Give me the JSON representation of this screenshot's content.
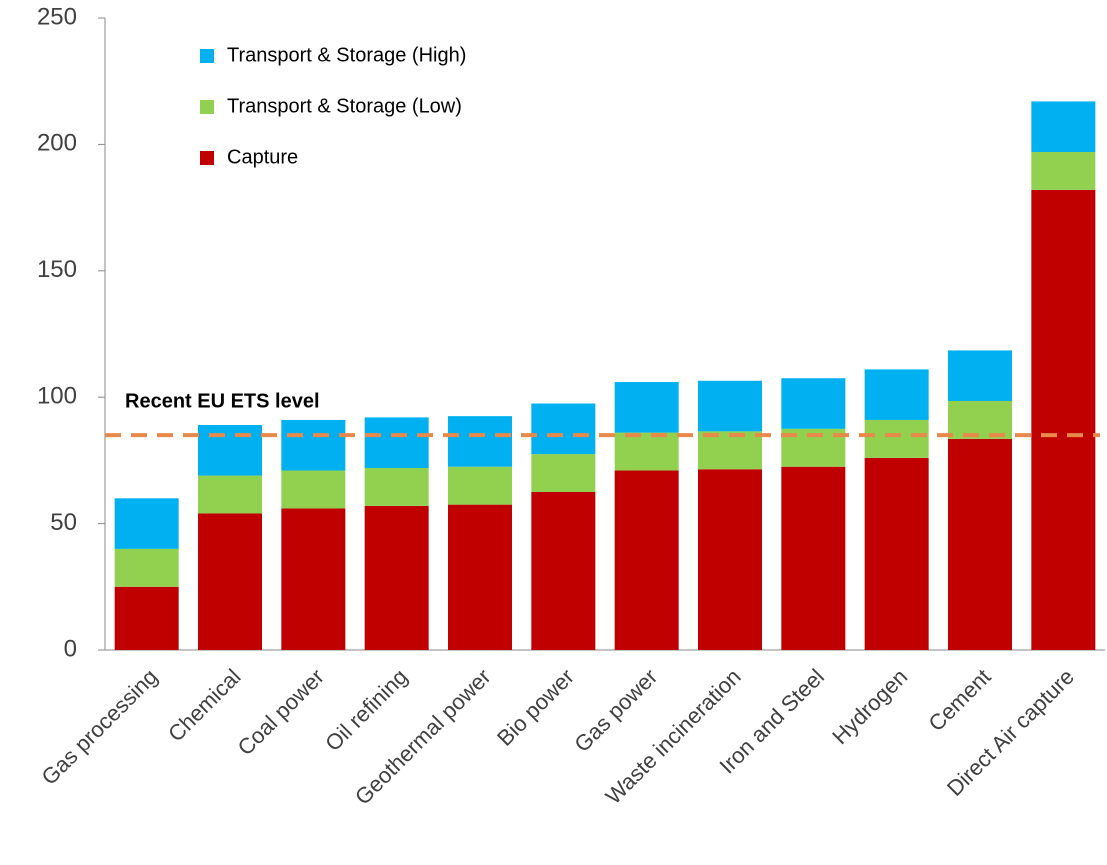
{
  "chart_data": {
    "type": "stacked_bar",
    "categories": [
      "Gas processing",
      "Chemical",
      "Coal power",
      "Oil refining",
      "Geothermal power",
      "Bio power",
      "Gas power",
      "Waste incineration",
      "Iron and Steel",
      "Hydrogen",
      "Cement",
      "Direct Air capture"
    ],
    "series": [
      {
        "name": "Capture",
        "color": "#c00000",
        "values": [
          25,
          54,
          56,
          57,
          57.5,
          62.5,
          71,
          71.5,
          72.5,
          76,
          83.5,
          182
        ]
      },
      {
        "name": "Transport & Storage (Low)",
        "color": "#92d050",
        "values": [
          15,
          15,
          15,
          15,
          15,
          15,
          15,
          15,
          15,
          15,
          15,
          15
        ]
      },
      {
        "name": "Transport & Storage (High)",
        "color": "#00b0f0",
        "values": [
          20,
          20,
          20,
          20,
          20,
          20,
          20,
          20,
          20,
          20,
          20,
          20
        ]
      }
    ],
    "ylim": [
      0,
      250
    ],
    "yticks": [
      0,
      50,
      100,
      150,
      200,
      250
    ],
    "reference_line": {
      "value": 85,
      "label": "Recent EU ETS level",
      "color": "#e8894a"
    },
    "legend": "top-left"
  }
}
